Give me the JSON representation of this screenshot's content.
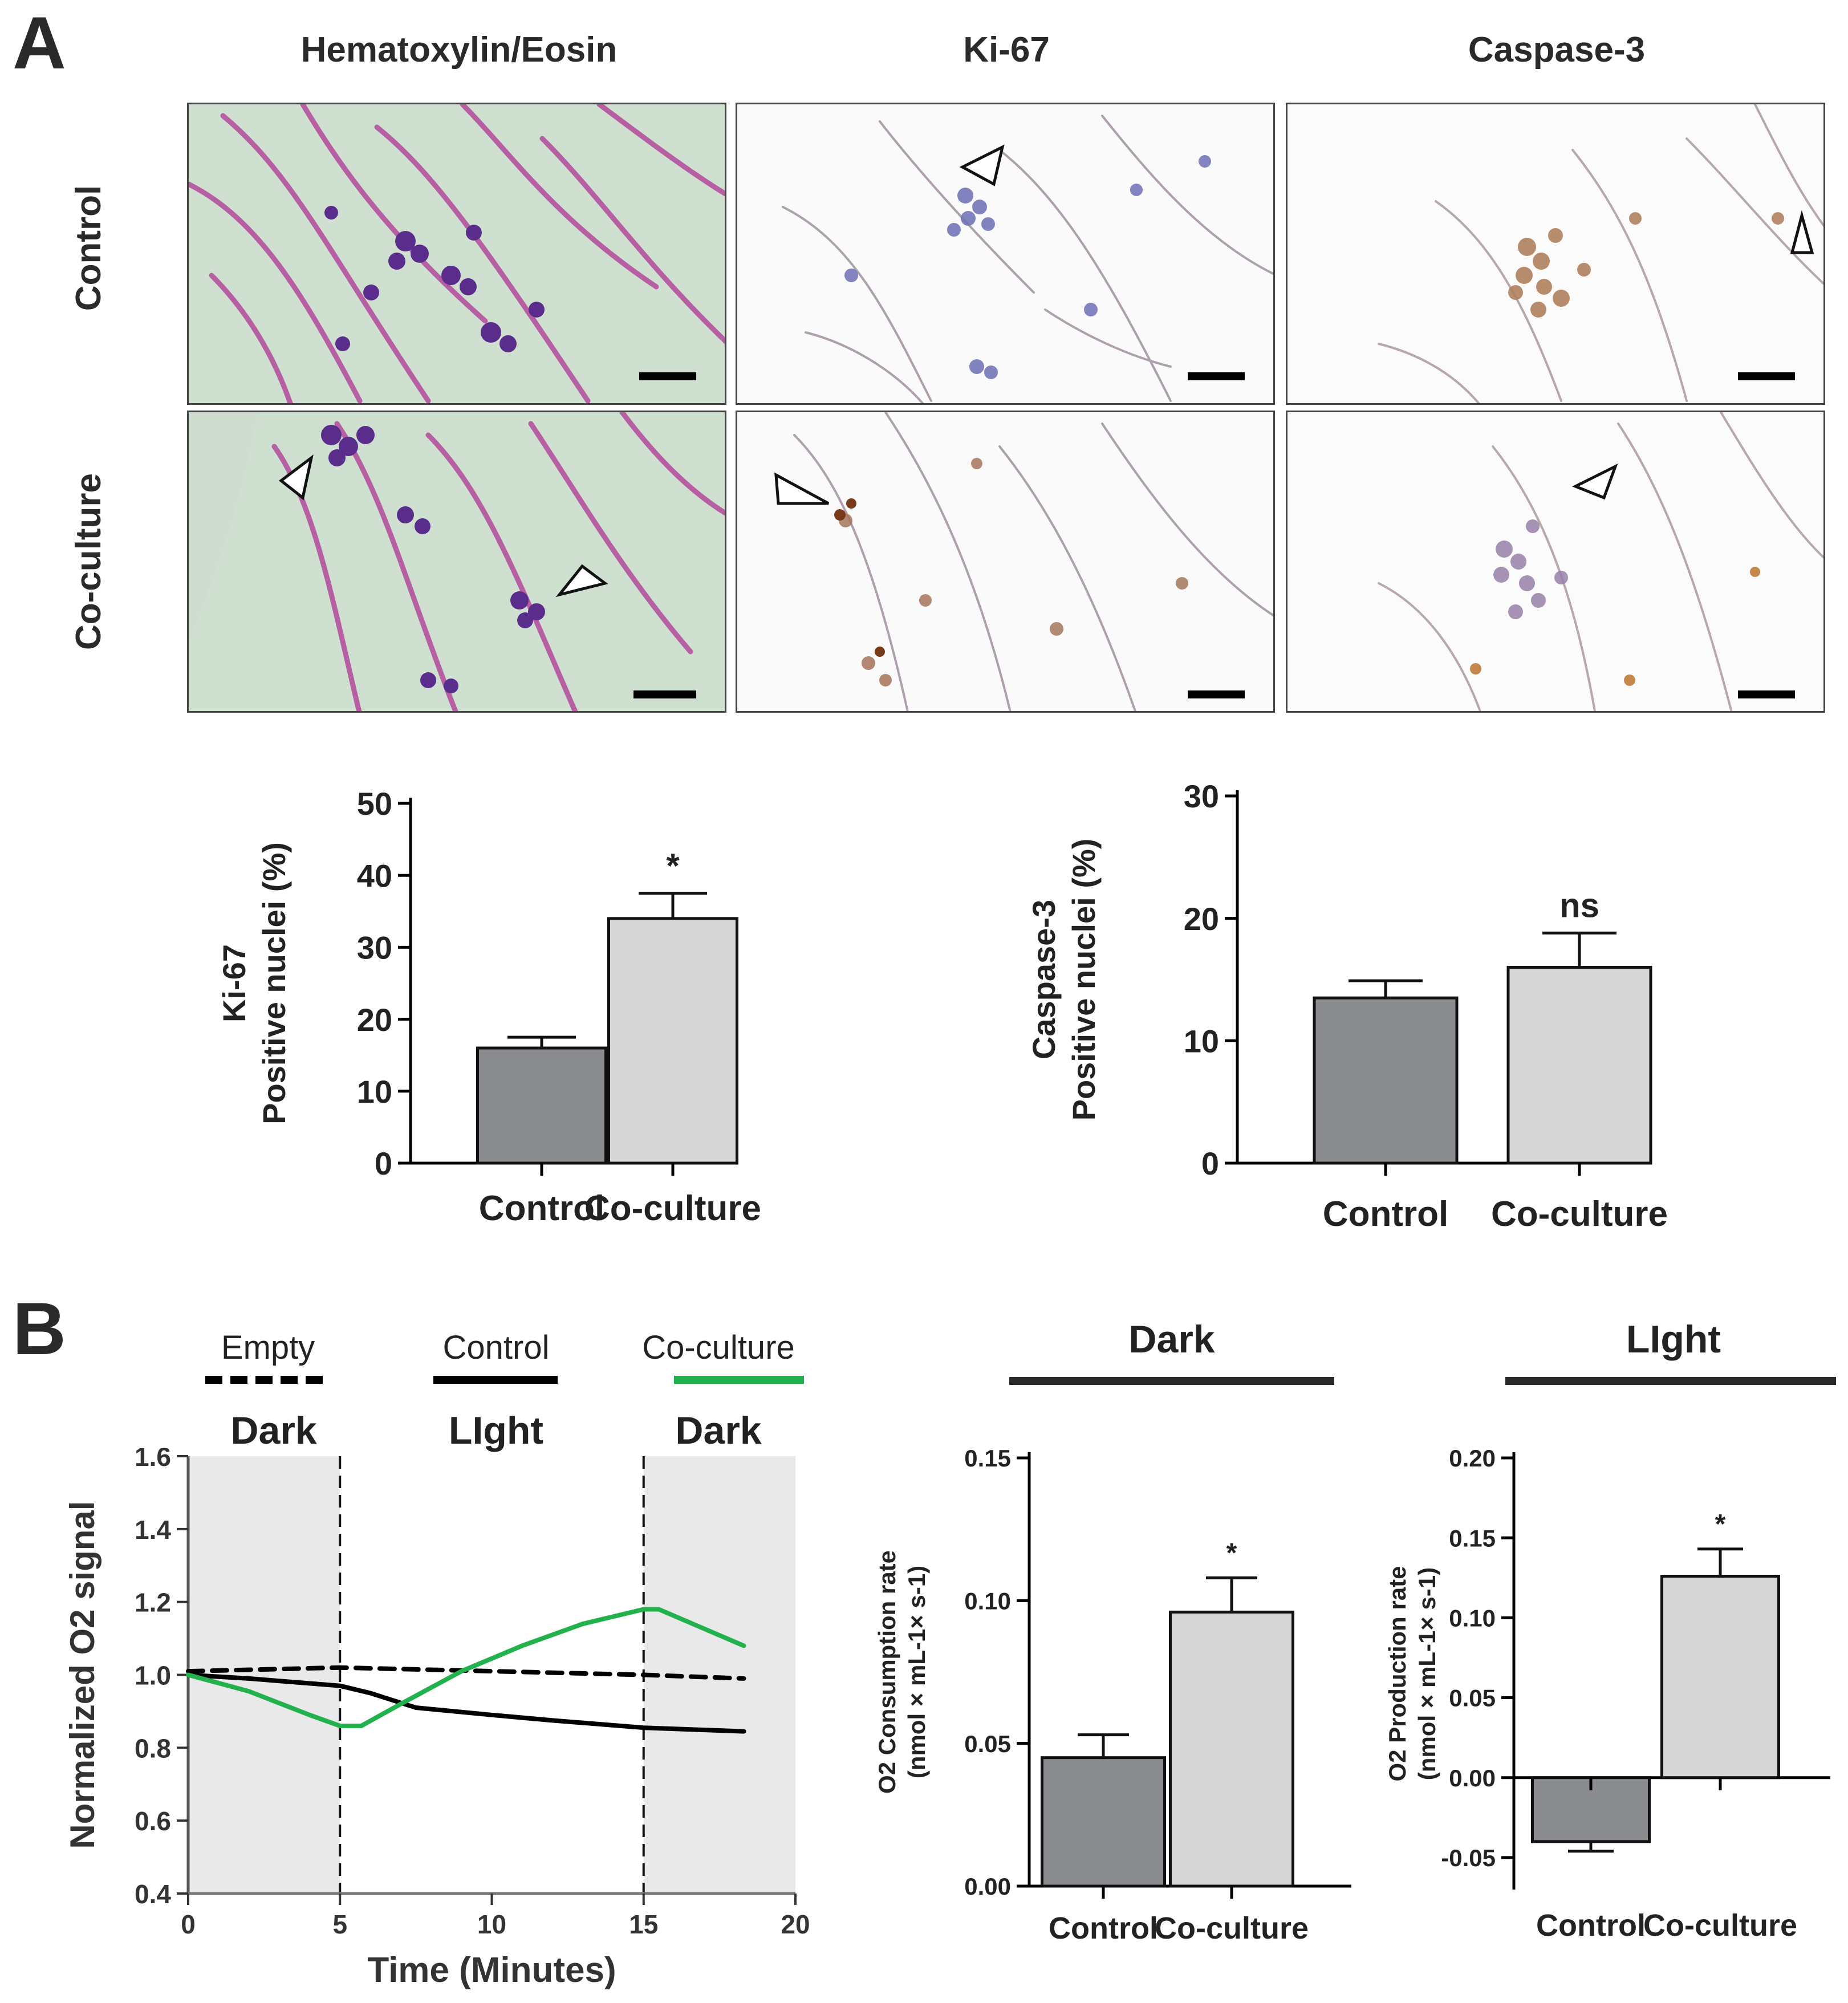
{
  "panel_a": {
    "letter": "A",
    "columns": [
      "Hematoxylin/Eosin",
      "Ki-67",
      "Caspase-3"
    ],
    "rows": [
      "Control",
      "Co-culture"
    ]
  },
  "panel_b": {
    "letter": "B",
    "legend": [
      {
        "label": "Empty",
        "style": "dashed",
        "color": "#000000"
      },
      {
        "label": "Control",
        "style": "solid",
        "color": "#000000"
      },
      {
        "label": "Co-culture",
        "style": "solid",
        "color": "#22b14c"
      }
    ],
    "phase_labels": [
      "Dark",
      "LIght",
      "Dark"
    ],
    "dark_header": "Dark",
    "light_header": "LIght"
  },
  "chart_data": [
    {
      "id": "ki67",
      "type": "bar",
      "categories": [
        "Control",
        "Co-culture"
      ],
      "values": [
        16,
        34
      ],
      "errors": [
        1.5,
        3.5
      ],
      "colors": [
        "#8a8b8e",
        "#d6d6d6"
      ],
      "annotations": [
        "",
        "*"
      ],
      "ylabel_line1": "Ki-67",
      "ylabel_line2": "Positive nuclei (%)",
      "ylim": [
        0,
        50
      ],
      "yticks": [
        "0",
        "10",
        "20",
        "30",
        "40",
        "50"
      ]
    },
    {
      "id": "caspase3",
      "type": "bar",
      "categories": [
        "Control",
        "Co-culture"
      ],
      "values": [
        13.5,
        16
      ],
      "errors": [
        1.4,
        2.8
      ],
      "colors": [
        "#8a8b8e",
        "#d6d6d6"
      ],
      "annotations": [
        "",
        "ns"
      ],
      "ylabel_line1": "Caspase-3",
      "ylabel_line2": "Positive nuclei (%)",
      "ylim": [
        0,
        30
      ],
      "yticks": [
        "0",
        "10",
        "20",
        "30"
      ]
    },
    {
      "id": "o2_signal",
      "type": "line",
      "xlabel": "Time (Minutes)",
      "ylabel": "Normalized O2 signal",
      "xlim": [
        0,
        20
      ],
      "ylim": [
        0.4,
        1.6
      ],
      "xticks": [
        "0",
        "5",
        "10",
        "15",
        "20"
      ],
      "yticks": [
        "0.4",
        "0.6",
        "0.8",
        "1.0",
        "1.2",
        "1.4",
        "1.6"
      ],
      "phase_boundaries": [
        5,
        15
      ],
      "series": [
        {
          "name": "Empty",
          "style": "dashed",
          "color": "#000000",
          "x": [
            0,
            5,
            10,
            15,
            18.3
          ],
          "y": [
            1.01,
            1.02,
            1.01,
            1.0,
            0.99
          ]
        },
        {
          "name": "Control",
          "style": "solid",
          "color": "#000000",
          "x": [
            0,
            2,
            5,
            6,
            7.5,
            10,
            12,
            15,
            18.3
          ],
          "y": [
            1.0,
            0.99,
            0.97,
            0.95,
            0.91,
            0.89,
            0.875,
            0.855,
            0.845
          ]
        },
        {
          "name": "Co-culture",
          "style": "solid",
          "color": "#22b14c",
          "x": [
            0,
            2,
            4,
            5,
            5.7,
            7,
            9,
            11,
            13,
            15,
            15.5,
            18.3
          ],
          "y": [
            1.0,
            0.955,
            0.89,
            0.86,
            0.86,
            0.92,
            1.01,
            1.08,
            1.14,
            1.18,
            1.18,
            1.08
          ]
        }
      ]
    },
    {
      "id": "o2_consumption",
      "type": "bar",
      "categories": [
        "Control",
        "Co-culture"
      ],
      "values": [
        0.045,
        0.096
      ],
      "errors": [
        0.008,
        0.012
      ],
      "colors": [
        "#8a8b8e",
        "#d6d6d6"
      ],
      "annotations": [
        "",
        "*"
      ],
      "ylabel_line1": "O2 Consumption rate",
      "ylabel_line2": "(nmol × mL-1× s-1)",
      "ylim": [
        0,
        0.15
      ],
      "yticks": [
        "0.00",
        "0.05",
        "0.10",
        "0.15"
      ]
    },
    {
      "id": "o2_production",
      "type": "bar",
      "categories": [
        "Control",
        "Co-culture"
      ],
      "values": [
        -0.04,
        0.126
      ],
      "errors": [
        0.006,
        0.017
      ],
      "colors": [
        "#8a8b8e",
        "#d6d6d6"
      ],
      "annotations": [
        "",
        "*"
      ],
      "ylabel_line1": "O2 Production rate",
      "ylabel_line2": "(nmol × mL-1× s-1)",
      "ylim": [
        -0.07,
        0.2
      ],
      "yticks": [
        "-0.05",
        "0.00",
        "0.05",
        "0.10",
        "0.15",
        "0.20"
      ],
      "ytick_values": [
        -0.05,
        0,
        0.05,
        0.1,
        0.15,
        0.2
      ]
    }
  ]
}
